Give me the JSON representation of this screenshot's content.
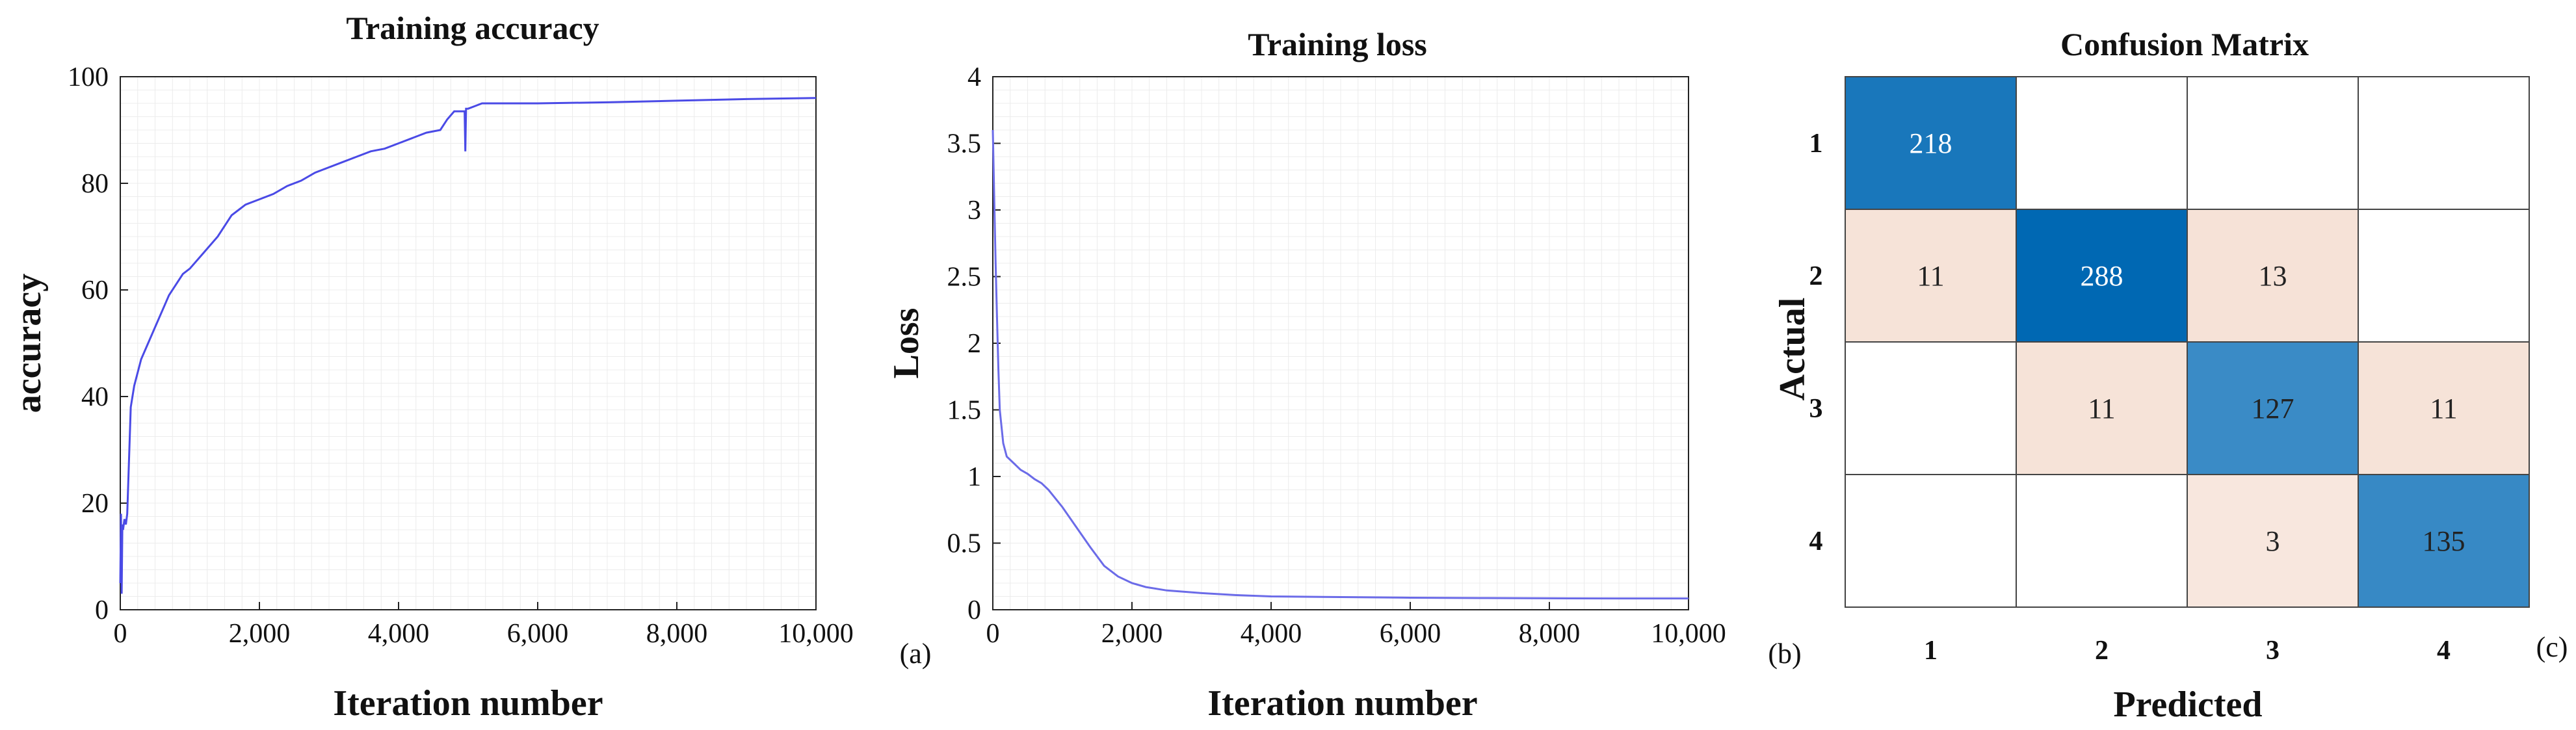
{
  "chart_data": [
    {
      "type": "line",
      "title": "Training accuracy",
      "xlabel": "Iteration number",
      "ylabel": "accuracy",
      "xlim": [
        0,
        10000
      ],
      "ylim": [
        0,
        100
      ],
      "x_ticks": [
        0,
        2000,
        4000,
        6000,
        8000,
        10000
      ],
      "x_tick_labels": [
        "0",
        "2,000",
        "4,000",
        "6,000",
        "8,000",
        "10,000"
      ],
      "y_ticks": [
        0,
        20,
        40,
        60,
        80,
        100
      ],
      "y_tick_labels": [
        "0",
        "20",
        "40",
        "60",
        "80",
        "100"
      ],
      "grid": true,
      "panel_label": "",
      "series": [
        {
          "name": "accuracy",
          "color": "#4a4ae6",
          "x": [
            0,
            10,
            20,
            30,
            40,
            60,
            80,
            100,
            150,
            200,
            300,
            400,
            500,
            600,
            700,
            800,
            900,
            1000,
            1200,
            1400,
            1600,
            1700,
            1800,
            2000,
            2200,
            2400,
            2600,
            2800,
            3000,
            3200,
            3400,
            3600,
            3800,
            4000,
            4200,
            4400,
            4600,
            4700,
            4800,
            4900,
            4950,
            4960,
            4970,
            4990,
            5000,
            5100,
            5200,
            5400,
            5600,
            6000,
            7000,
            8000,
            9000,
            10000
          ],
          "y": [
            5,
            18,
            3,
            16,
            15,
            17,
            16,
            18,
            38,
            42,
            47,
            50,
            53,
            56,
            59,
            61,
            63,
            64,
            67,
            70,
            74,
            75,
            76,
            77,
            78,
            79.5,
            80.5,
            82,
            83,
            84,
            85,
            86,
            86.5,
            87.5,
            88.5,
            89.5,
            90,
            92,
            93.5,
            93.5,
            93.5,
            86,
            94,
            94,
            94,
            94.5,
            95,
            95,
            95,
            95,
            95.2,
            95.5,
            95.8,
            96
          ]
        }
      ]
    },
    {
      "type": "line",
      "title": "Training loss",
      "xlabel": "Iteration number",
      "ylabel": "Loss",
      "xlim": [
        0,
        10000
      ],
      "ylim": [
        0,
        4
      ],
      "x_ticks": [
        0,
        2000,
        4000,
        6000,
        8000,
        10000
      ],
      "x_tick_labels": [
        "0",
        "2,000",
        "4,000",
        "6,000",
        "8,000",
        "10,000"
      ],
      "y_ticks": [
        0,
        0.5,
        1,
        1.5,
        2,
        2.5,
        3,
        3.5,
        4
      ],
      "y_tick_labels": [
        "0",
        "0.5",
        "1",
        "1.5",
        "2",
        "2.5",
        "3",
        "3.5",
        "4"
      ],
      "grid": true,
      "panel_label": "(a)",
      "series": [
        {
          "name": "loss",
          "color": "#6b6be8",
          "x": [
            0,
            20,
            40,
            60,
            80,
            100,
            150,
            200,
            300,
            400,
            500,
            600,
            700,
            800,
            1000,
            1200,
            1400,
            1600,
            1800,
            2000,
            2200,
            2500,
            3000,
            3500,
            4000,
            5000,
            6000,
            7000,
            8000,
            9000,
            10000
          ],
          "y": [
            3.6,
            3.1,
            2.6,
            2.2,
            1.8,
            1.5,
            1.25,
            1.15,
            1.1,
            1.05,
            1.02,
            0.98,
            0.95,
            0.9,
            0.77,
            0.62,
            0.47,
            0.33,
            0.25,
            0.2,
            0.17,
            0.145,
            0.125,
            0.11,
            0.1,
            0.095,
            0.09,
            0.088,
            0.086,
            0.085,
            0.085
          ]
        }
      ]
    },
    {
      "type": "heatmap",
      "title": "Confusion Matrix",
      "xlabel": "Predicted",
      "ylabel": "Actual",
      "row_labels": [
        "1",
        "2",
        "3",
        "4"
      ],
      "col_labels": [
        "1",
        "2",
        "3",
        "4"
      ],
      "values": [
        [
          218,
          null,
          null,
          null
        ],
        [
          11,
          288,
          13,
          null
        ],
        [
          null,
          11,
          127,
          11
        ],
        [
          null,
          null,
          3,
          135
        ]
      ],
      "panel_label": "(b)",
      "panel_label_right": "(c)"
    }
  ]
}
